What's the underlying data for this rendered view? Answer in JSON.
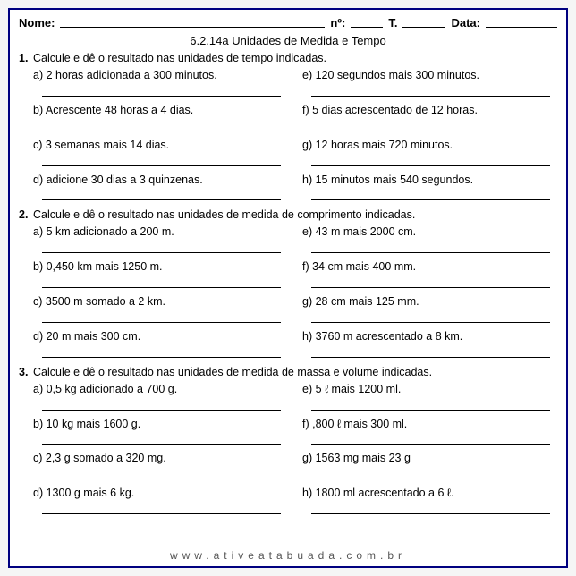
{
  "header": {
    "name_label": "Nome:",
    "num_label": "nº:",
    "t_label": "T.",
    "date_label": "Data:"
  },
  "title": "6.2.14a Unidades de Medida e Tempo",
  "questions": [
    {
      "num": "1.",
      "prompt": "Calcule e dê o resultado nas unidades de tempo indicadas.",
      "items": [
        {
          "l": "a) 2 horas adicionada a 300 minutos.",
          "r": "e) 120 segundos mais 300 minutos."
        },
        {
          "l": "b) Acrescente 48 horas a 4 dias.",
          "r": "f) 5 dias acrescentado de 12 horas."
        },
        {
          "l": "c) 3 semanas mais 14 dias.",
          "r": "g) 12 horas mais 720 minutos."
        },
        {
          "l": "d) adicione 30 dias a 3 quinzenas.",
          "r": "h) 15 minutos mais 540 segundos."
        }
      ]
    },
    {
      "num": "2.",
      "prompt": "Calcule e dê o resultado nas unidades de medida de comprimento indicadas.",
      "items": [
        {
          "l": "a) 5 km adicionado a 200 m.",
          "r": "e) 43 m mais 2000 cm."
        },
        {
          "l": "b) 0,450 km mais 1250 m.",
          "r": "f) 34 cm mais 400 mm."
        },
        {
          "l": "c) 3500 m somado a 2 km.",
          "r": "g) 28 cm mais 125 mm."
        },
        {
          "l": "d) 20 m mais 300 cm.",
          "r": "h) 3760 m acrescentado a 8 km."
        }
      ]
    },
    {
      "num": "3.",
      "prompt": "Calcule e dê o resultado nas unidades de medida de massa e volume indicadas.",
      "items": [
        {
          "l": "a) 0,5 kg adicionado a 700 g.",
          "r": "e) 5 ℓ mais 1200 ml."
        },
        {
          "l": "b) 10 kg mais 1600 g.",
          "r": "f) ,800 ℓ mais 300 ml."
        },
        {
          "l": "c) 2,3 g somado a 320 mg.",
          "r": "g) 1563 mg mais 23 g"
        },
        {
          "l": "d) 1300 g mais 6 kg.",
          "r": "h) 1800 ml acrescentado a 6 ℓ."
        }
      ]
    }
  ],
  "footer": "www.ativeatabuada.com.br"
}
